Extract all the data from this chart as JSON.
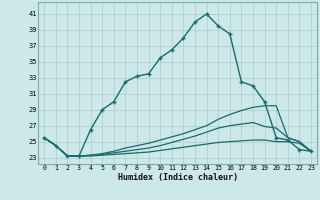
{
  "title": "",
  "xlabel": "Humidex (Indice chaleur)",
  "ylabel": "",
  "bg_color": "#cce8e8",
  "grid_color": "#aacccc",
  "line_color": "#1a6b6b",
  "x_ticks": [
    0,
    1,
    2,
    3,
    4,
    5,
    6,
    7,
    8,
    9,
    10,
    11,
    12,
    13,
    14,
    15,
    16,
    17,
    18,
    19,
    20,
    21,
    22,
    23
  ],
  "y_ticks": [
    23,
    25,
    27,
    29,
    31,
    33,
    35,
    37,
    39,
    41
  ],
  "ylim": [
    22.2,
    42.5
  ],
  "xlim": [
    -0.5,
    23.5
  ],
  "series": [
    {
      "x": [
        0,
        1,
        2,
        3,
        4,
        5,
        6,
        7,
        8,
        9,
        10,
        11,
        12,
        13,
        14,
        15,
        16,
        17,
        18,
        19,
        20,
        21,
        22,
        23
      ],
      "y": [
        25.5,
        24.5,
        23.2,
        23.2,
        26.5,
        29.0,
        30.0,
        32.5,
        33.2,
        33.5,
        35.5,
        36.5,
        38.0,
        40.0,
        41.0,
        39.5,
        38.5,
        32.5,
        32.0,
        30.0,
        25.5,
        25.2,
        24.0,
        23.8
      ],
      "marker": "+",
      "markersize": 3.5,
      "linewidth": 1.0
    },
    {
      "x": [
        0,
        1,
        2,
        3,
        4,
        5,
        6,
        7,
        8,
        9,
        10,
        11,
        12,
        13,
        14,
        15,
        16,
        17,
        18,
        19,
        20,
        21,
        22,
        23
      ],
      "y": [
        25.5,
        24.5,
        23.2,
        23.2,
        23.3,
        23.5,
        23.8,
        24.2,
        24.5,
        24.8,
        25.2,
        25.6,
        26.0,
        26.5,
        27.0,
        27.8,
        28.4,
        28.9,
        29.3,
        29.5,
        29.5,
        25.5,
        25.0,
        23.8
      ],
      "marker": null,
      "markersize": 0,
      "linewidth": 0.9
    },
    {
      "x": [
        0,
        1,
        2,
        3,
        4,
        5,
        6,
        7,
        8,
        9,
        10,
        11,
        12,
        13,
        14,
        15,
        16,
        17,
        18,
        19,
        20,
        21,
        22,
        23
      ],
      "y": [
        25.5,
        24.5,
        23.2,
        23.2,
        23.3,
        23.4,
        23.6,
        23.8,
        24.0,
        24.2,
        24.5,
        24.9,
        25.3,
        25.7,
        26.2,
        26.7,
        27.0,
        27.2,
        27.4,
        26.9,
        26.7,
        25.5,
        25.0,
        23.8
      ],
      "marker": null,
      "markersize": 0,
      "linewidth": 0.9
    },
    {
      "x": [
        0,
        1,
        2,
        3,
        4,
        5,
        6,
        7,
        8,
        9,
        10,
        11,
        12,
        13,
        14,
        15,
        16,
        17,
        18,
        19,
        20,
        21,
        22,
        23
      ],
      "y": [
        25.5,
        24.5,
        23.2,
        23.2,
        23.2,
        23.3,
        23.4,
        23.5,
        23.6,
        23.7,
        23.9,
        24.1,
        24.3,
        24.5,
        24.7,
        24.9,
        25.0,
        25.1,
        25.2,
        25.2,
        25.0,
        25.0,
        24.8,
        23.8
      ],
      "marker": null,
      "markersize": 0,
      "linewidth": 0.9
    }
  ]
}
